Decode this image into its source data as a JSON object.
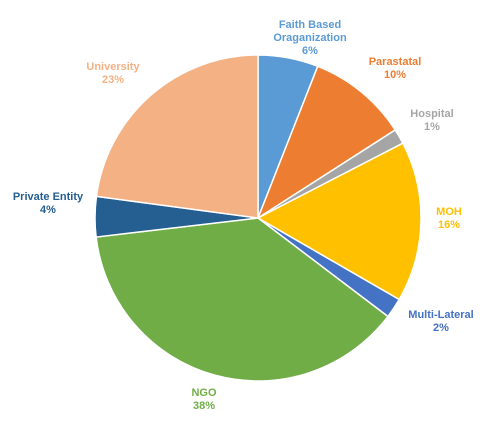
{
  "chart_data": {
    "type": "pie",
    "title": "",
    "slices": [
      {
        "label_lines": [
          "Faith Based",
          "Oraganization"
        ],
        "percent_label": "6%",
        "value": 6,
        "color": "#5B9BD5"
      },
      {
        "label_lines": [
          "Parastatal"
        ],
        "percent_label": "10%",
        "value": 10,
        "color": "#ED7D31"
      },
      {
        "label_lines": [
          "Hospital"
        ],
        "percent_label": "1%",
        "value": 1.5,
        "color": "#A5A5A5"
      },
      {
        "label_lines": [
          "MOH"
        ],
        "percent_label": "16%",
        "value": 16,
        "color": "#FFC000"
      },
      {
        "label_lines": [
          "Multi-Lateral"
        ],
        "percent_label": "2%",
        "value": 2,
        "color": "#4472C4"
      },
      {
        "label_lines": [
          "NGO"
        ],
        "percent_label": "38%",
        "value": 38,
        "color": "#70AD47"
      },
      {
        "label_lines": [
          "Private Entity"
        ],
        "percent_label": "4%",
        "value": 4,
        "color": "#255E91"
      },
      {
        "label_lines": [
          "University"
        ],
        "percent_label": "23%",
        "value": 23,
        "color": "#F4B183"
      }
    ]
  }
}
